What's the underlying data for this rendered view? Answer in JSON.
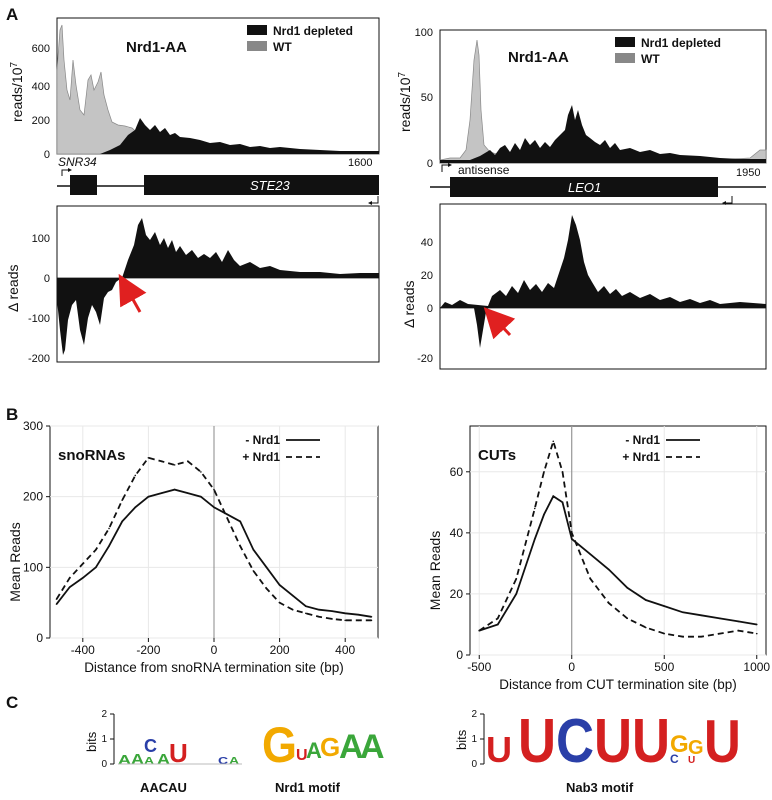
{
  "panel_labels": {
    "a": "A",
    "b": "B",
    "c": "C"
  },
  "panel_a": {
    "left": {
      "title": "Nrd1-AA",
      "ylabel": "reads/10",
      "ylabel_exp": "7",
      "legend": [
        "Nrd1 depleted",
        "WT"
      ],
      "yticks": [
        "600",
        "400",
        "200",
        "0"
      ],
      "coord": "1600",
      "gene_snr": "SNR34",
      "gene_main": "STE23",
      "delta_label": "Δ reads",
      "delta_yticks": [
        "100",
        "0",
        "-100",
        "-200"
      ]
    },
    "right": {
      "title": "Nrd1-AA",
      "ylabel": "reads/10",
      "ylabel_exp": "7",
      "legend": [
        "Nrd1 depleted",
        "WT"
      ],
      "yticks": [
        "100",
        "50",
        "0"
      ],
      "coord": "1950",
      "gene_antisense": "antisense",
      "gene_main": "LEO1",
      "delta_label": "Δ reads",
      "delta_yticks": [
        "40",
        "20",
        "0",
        "-20"
      ]
    }
  },
  "chart_data": [
    {
      "type": "line",
      "title": "snoRNAs",
      "xlabel": "Distance from snoRNA termination site  (bp)",
      "ylabel": "Mean Reads",
      "xlim": [
        -500,
        500
      ],
      "ylim": [
        0,
        300
      ],
      "xticks": [
        "-400",
        "-200",
        "0",
        "200",
        "400"
      ],
      "yticks": [
        "300",
        "200",
        "100",
        "0"
      ],
      "x": [
        -480,
        -440,
        -400,
        -360,
        -320,
        -280,
        -240,
        -200,
        -160,
        -120,
        -80,
        -40,
        0,
        40,
        80,
        120,
        160,
        200,
        240,
        280,
        320,
        360,
        400,
        440,
        480
      ],
      "series": [
        {
          "name": "- Nrd1",
          "values": [
            48,
            72,
            85,
            100,
            130,
            165,
            185,
            200,
            205,
            210,
            205,
            200,
            185,
            175,
            165,
            125,
            100,
            75,
            60,
            45,
            40,
            38,
            35,
            33,
            30
          ]
        },
        {
          "name": "+ Nrd1",
          "values": [
            55,
            85,
            105,
            125,
            155,
            195,
            230,
            255,
            250,
            245,
            250,
            235,
            210,
            170,
            130,
            95,
            70,
            50,
            40,
            35,
            30,
            27,
            25,
            25,
            25
          ]
        }
      ]
    },
    {
      "type": "line",
      "title": "CUTs",
      "xlabel": "Distance from CUT termination site (bp)",
      "ylabel": "Mean Reads",
      "xlim": [
        -550,
        1050
      ],
      "ylim": [
        0,
        75
      ],
      "xticks": [
        "-500",
        "0",
        "500",
        "1000"
      ],
      "yticks": [
        "60",
        "40",
        "20",
        "0"
      ],
      "x": [
        -500,
        -400,
        -300,
        -200,
        -150,
        -100,
        -50,
        0,
        100,
        200,
        300,
        400,
        500,
        600,
        700,
        800,
        900,
        1000
      ],
      "series": [
        {
          "name": "- Nrd1",
          "values": [
            8,
            10,
            20,
            38,
            46,
            52,
            50,
            38,
            33,
            28,
            22,
            18,
            16,
            14,
            13,
            12,
            11,
            10
          ]
        },
        {
          "name": "+ Nrd1",
          "values": [
            8,
            12,
            25,
            48,
            60,
            70,
            60,
            40,
            25,
            17,
            12,
            9,
            7,
            6,
            6,
            7,
            8,
            7
          ]
        }
      ]
    }
  ],
  "panel_c": {
    "bits_label": "bits",
    "logo1_label": "AACAU",
    "logo2_label": "Nrd1 motif",
    "logo3_label": "Nab3 motif",
    "yticks_small": [
      "2",
      "1",
      "0"
    ],
    "colors": {
      "A": "#3aa63a",
      "C": "#2a3fa8",
      "G": "#f2a900",
      "U": "#d42020"
    }
  }
}
